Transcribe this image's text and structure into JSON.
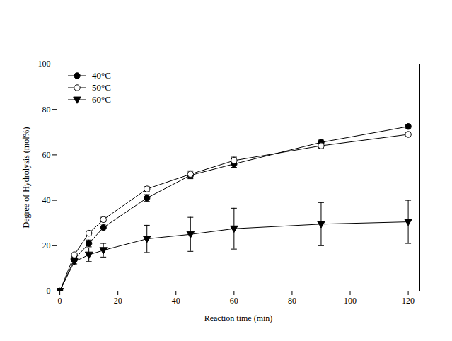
{
  "chart_data": {
    "type": "line",
    "xlabel": "Reaction time (min)",
    "ylabel": "Degree of Hydrolysis (mol%)",
    "x": [
      0,
      5,
      10,
      15,
      30,
      45,
      60,
      90,
      120
    ],
    "xlim": [
      -1,
      124
    ],
    "xticks": [
      0,
      20,
      40,
      60,
      80,
      100,
      120
    ],
    "ylim": [
      0,
      100
    ],
    "yticks": [
      0,
      20,
      40,
      60,
      80,
      100
    ],
    "grid": false,
    "legend": "upper left",
    "series": [
      {
        "name": "40°C",
        "color": "#000000",
        "marker": "circle",
        "values": [
          0,
          14,
          21,
          28,
          41,
          51,
          56,
          65.5,
          72.5
        ],
        "errors": [
          0,
          1,
          1.5,
          1.5,
          1.5,
          1.5,
          1.5,
          1,
          1
        ]
      },
      {
        "name": "50°C",
        "color": "#000000",
        "marker": "open_circle",
        "values": [
          0,
          16,
          25.5,
          31.5,
          45,
          51.5,
          57.5,
          64,
          69
        ],
        "errors": [
          0,
          0.5,
          1,
          1,
          1,
          1.5,
          1.5,
          1,
          1
        ]
      },
      {
        "name": "60°C",
        "color": "#000000",
        "marker": "triangle_down",
        "values": [
          0,
          13,
          16,
          18,
          23,
          25,
          27.5,
          29.5,
          30.5
        ],
        "errors": [
          0,
          1,
          3,
          3,
          6,
          7.5,
          9,
          9.5,
          9.5
        ]
      }
    ]
  }
}
